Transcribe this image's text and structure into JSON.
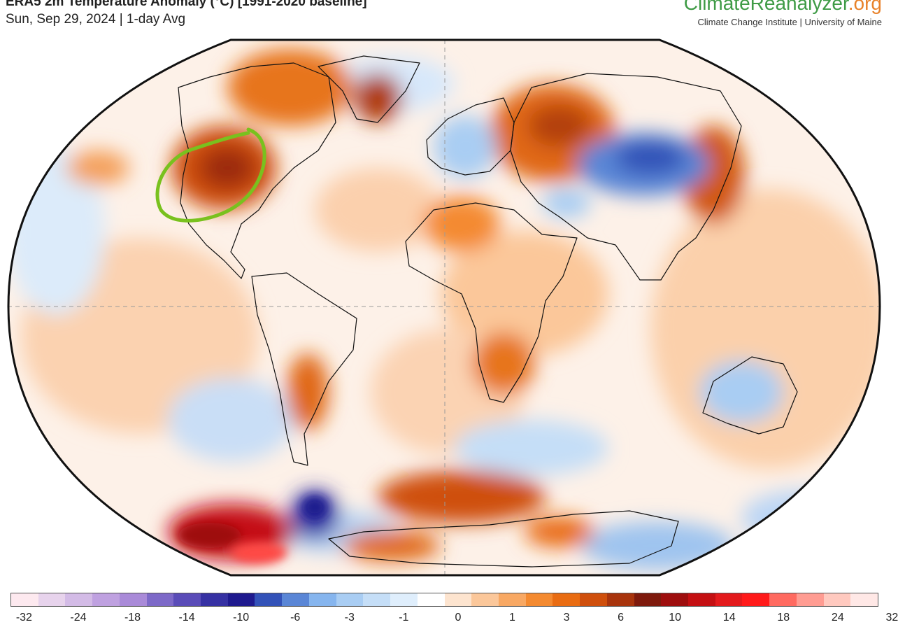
{
  "header": {
    "title": "ERA5 2m Temperature Anomaly (°C) [1991-2020 baseline]",
    "subtitle": "Sun, Sep 29, 2024 | 1-day Avg"
  },
  "brand": {
    "name_main": "ClimateReanalyzer",
    "name_tld": ".org",
    "tagline": "Climate Change Institute | University of Maine"
  },
  "legend": {
    "colors": [
      "#fde9ef",
      "#e7d3ec",
      "#d3bbe6",
      "#bfa1e0",
      "#a98ad8",
      "#7d69c8",
      "#5a4cb8",
      "#3631a3",
      "#1f1a8e",
      "#3352b8",
      "#5a86d6",
      "#86b5ee",
      "#a9cdf3",
      "#c5def7",
      "#dfeefc",
      "#ffffff",
      "#fde4cf",
      "#fbc79a",
      "#f8a863",
      "#f48a30",
      "#e96c12",
      "#cf4f0c",
      "#a8340d",
      "#7e1a0d",
      "#9e0e0e",
      "#c40f12",
      "#e31a1c",
      "#ff1a1a",
      "#ff6a60",
      "#ff9c92",
      "#ffc9bf",
      "#ffe8e6"
    ],
    "tick_labels": [
      "-32",
      "-24",
      "-18",
      "-14",
      "-10",
      "-6",
      "-3",
      "-1",
      "0",
      "1",
      "3",
      "6",
      "10",
      "14",
      "18",
      "24",
      "32"
    ]
  },
  "map": {
    "projection": "Robinson",
    "annotation_color": "#79c11e",
    "annotation_note": "hand-drawn green loop circling the central United States"
  }
}
